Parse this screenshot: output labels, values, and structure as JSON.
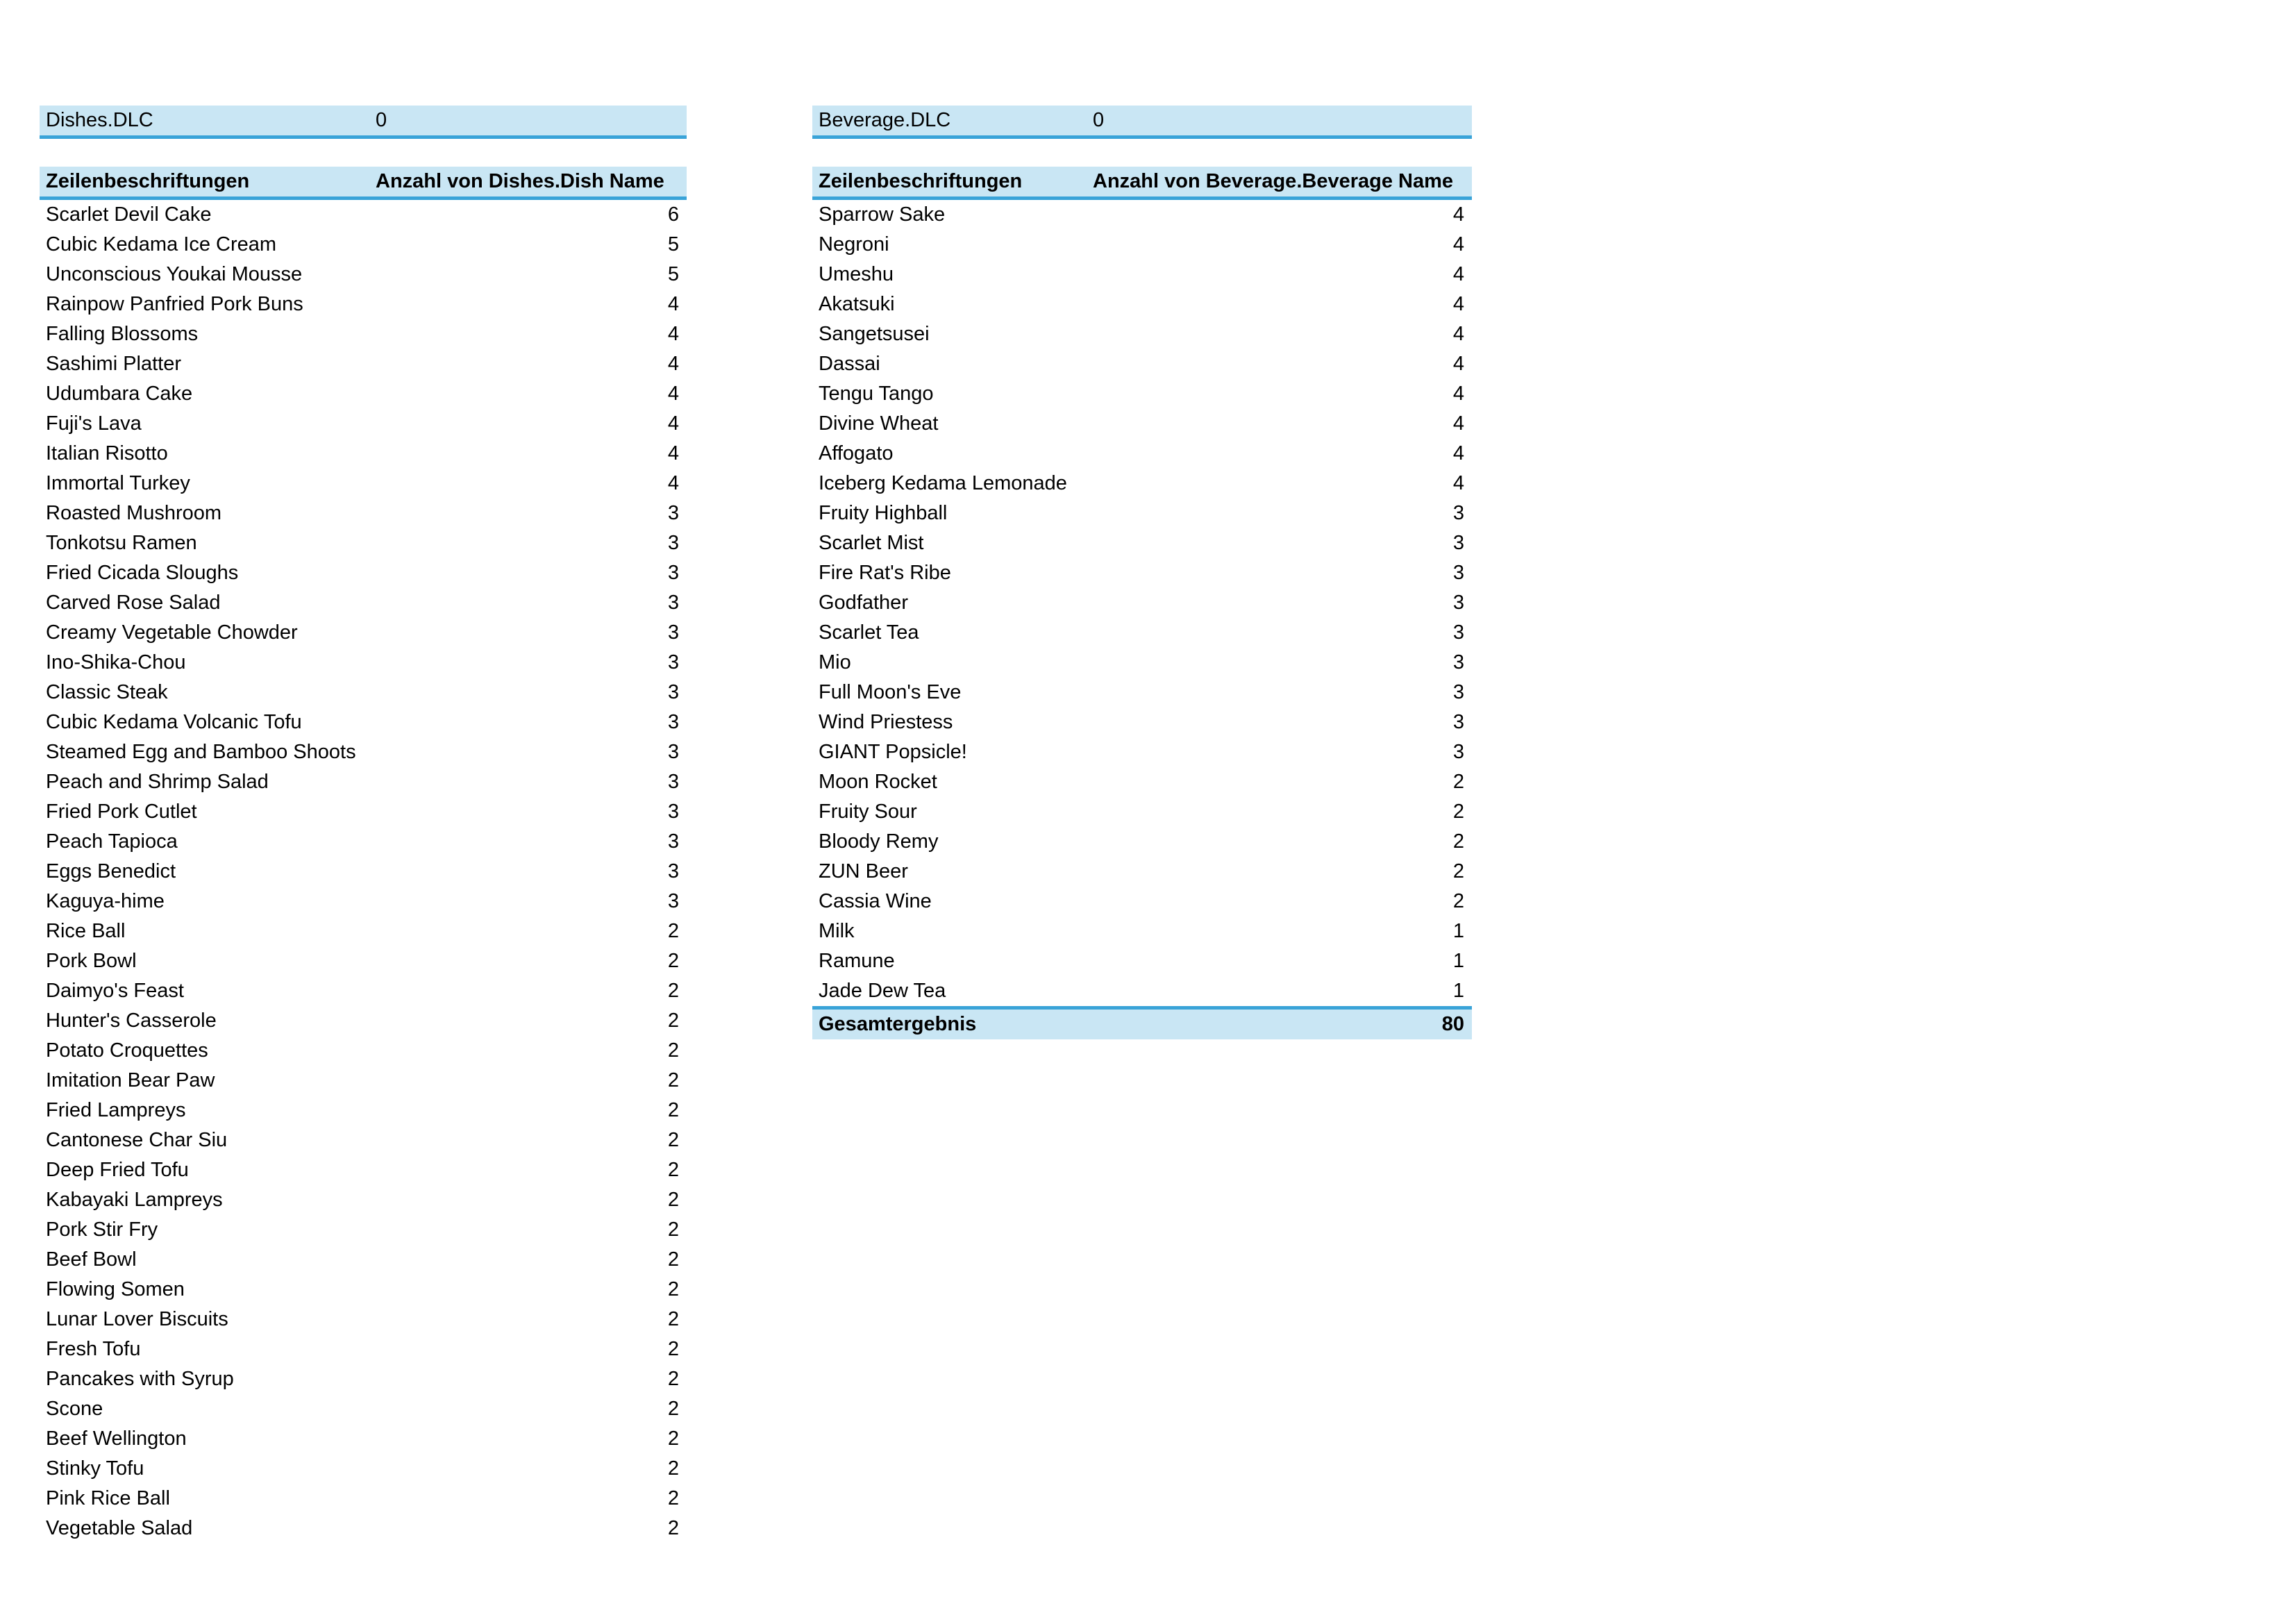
{
  "colors": {
    "fill": "#C9E6F4",
    "accent": "#39A3D8",
    "text": "#000000",
    "background": "#FFFFFF"
  },
  "dishes_table": {
    "filter_label": "Dishes.DLC",
    "filter_value": "0",
    "row_header": "Zeilenbeschriftungen",
    "value_header": "Anzahl von Dishes.Dish Name",
    "rows": [
      {
        "label": "Scarlet Devil Cake",
        "count": 6
      },
      {
        "label": "Cubic Kedama Ice Cream",
        "count": 5
      },
      {
        "label": "Unconscious Youkai Mousse",
        "count": 5
      },
      {
        "label": "Rainpow Panfried Pork Buns",
        "count": 4
      },
      {
        "label": "Falling Blossoms",
        "count": 4
      },
      {
        "label": "Sashimi Platter",
        "count": 4
      },
      {
        "label": "Udumbara Cake",
        "count": 4
      },
      {
        "label": "Fuji's Lava",
        "count": 4
      },
      {
        "label": "Italian Risotto",
        "count": 4
      },
      {
        "label": "Immortal Turkey",
        "count": 4
      },
      {
        "label": "Roasted Mushroom",
        "count": 3
      },
      {
        "label": "Tonkotsu Ramen",
        "count": 3
      },
      {
        "label": "Fried Cicada Sloughs",
        "count": 3
      },
      {
        "label": "Carved Rose Salad",
        "count": 3
      },
      {
        "label": "Creamy Vegetable Chowder",
        "count": 3
      },
      {
        "label": "Ino-Shika-Chou",
        "count": 3
      },
      {
        "label": "Classic Steak",
        "count": 3
      },
      {
        "label": "Cubic Kedama Volcanic Tofu",
        "count": 3
      },
      {
        "label": "Steamed Egg and Bamboo Shoots",
        "count": 3
      },
      {
        "label": "Peach and Shrimp Salad",
        "count": 3
      },
      {
        "label": "Fried Pork Cutlet",
        "count": 3
      },
      {
        "label": "Peach Tapioca",
        "count": 3
      },
      {
        "label": "Eggs Benedict",
        "count": 3
      },
      {
        "label": "Kaguya-hime",
        "count": 3
      },
      {
        "label": "Rice Ball",
        "count": 2
      },
      {
        "label": "Pork Bowl",
        "count": 2
      },
      {
        "label": "Daimyo's Feast",
        "count": 2
      },
      {
        "label": "Hunter's Casserole",
        "count": 2
      },
      {
        "label": "Potato Croquettes",
        "count": 2
      },
      {
        "label": "Imitation Bear Paw",
        "count": 2
      },
      {
        "label": "Fried Lampreys",
        "count": 2
      },
      {
        "label": "Cantonese Char Siu",
        "count": 2
      },
      {
        "label": "Deep Fried Tofu",
        "count": 2
      },
      {
        "label": "Kabayaki Lampreys",
        "count": 2
      },
      {
        "label": "Pork Stir Fry",
        "count": 2
      },
      {
        "label": "Beef Bowl",
        "count": 2
      },
      {
        "label": "Flowing Somen",
        "count": 2
      },
      {
        "label": "Lunar Lover Biscuits",
        "count": 2
      },
      {
        "label": "Fresh Tofu",
        "count": 2
      },
      {
        "label": "Pancakes with Syrup",
        "count": 2
      },
      {
        "label": "Scone",
        "count": 2
      },
      {
        "label": "Beef Wellington",
        "count": 2
      },
      {
        "label": "Stinky Tofu",
        "count": 2
      },
      {
        "label": "Pink Rice Ball",
        "count": 2
      },
      {
        "label": "Vegetable Salad",
        "count": 2
      }
    ]
  },
  "beverage_table": {
    "filter_label": "Beverage.DLC",
    "filter_value": "0",
    "row_header": "Zeilenbeschriftungen",
    "value_header": "Anzahl von Beverage.Beverage Name",
    "rows": [
      {
        "label": "Sparrow Sake",
        "count": 4
      },
      {
        "label": "Negroni",
        "count": 4
      },
      {
        "label": "Umeshu",
        "count": 4
      },
      {
        "label": "Akatsuki",
        "count": 4
      },
      {
        "label": "Sangetsusei",
        "count": 4
      },
      {
        "label": "Dassai",
        "count": 4
      },
      {
        "label": "Tengu Tango",
        "count": 4
      },
      {
        "label": "Divine Wheat",
        "count": 4
      },
      {
        "label": "Affogato",
        "count": 4
      },
      {
        "label": "Iceberg Kedama Lemonade",
        "count": 4
      },
      {
        "label": "Fruity Highball",
        "count": 3
      },
      {
        "label": "Scarlet Mist",
        "count": 3
      },
      {
        "label": "Fire Rat's Ribe",
        "count": 3
      },
      {
        "label": "Godfather",
        "count": 3
      },
      {
        "label": "Scarlet Tea",
        "count": 3
      },
      {
        "label": "Mio",
        "count": 3
      },
      {
        "label": "Full Moon's Eve",
        "count": 3
      },
      {
        "label": "Wind Priestess",
        "count": 3
      },
      {
        "label": "GIANT Popsicle!",
        "count": 3
      },
      {
        "label": "Moon Rocket",
        "count": 2
      },
      {
        "label": "Fruity Sour",
        "count": 2
      },
      {
        "label": "Bloody Remy",
        "count": 2
      },
      {
        "label": "ZUN Beer",
        "count": 2
      },
      {
        "label": "Cassia Wine",
        "count": 2
      },
      {
        "label": "Milk",
        "count": 1
      },
      {
        "label": "Ramune",
        "count": 1
      },
      {
        "label": "Jade Dew Tea",
        "count": 1
      }
    ],
    "total_label": "Gesamtergebnis",
    "total_value": 80
  }
}
